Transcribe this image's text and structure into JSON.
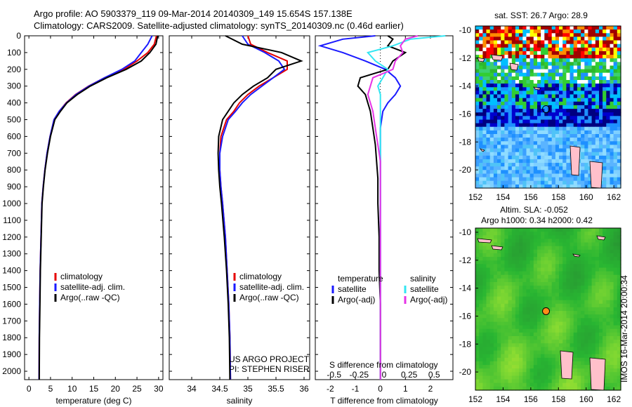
{
  "header": {
    "line1": "Argo profile: AO 5903379_119 09-Mar-2014 20140309_149 15.654S 157.138E",
    "line2": "Climatology: CARS2009. Satellite-adjusted climatology: synTS_20140309.nc (0.46d earlier)"
  },
  "colors": {
    "climatology": "#e60000",
    "satellite": "#1a1aff",
    "argo": "#000000",
    "cyan": "#33e6f2",
    "magenta": "#e633e6"
  },
  "depth_axis": {
    "ticks": [
      0,
      100,
      200,
      300,
      400,
      500,
      600,
      700,
      800,
      900,
      1000,
      1100,
      1200,
      1300,
      1400,
      1500,
      1600,
      1700,
      1800,
      1900,
      2000
    ],
    "range": [
      0,
      2050
    ]
  },
  "chart_data": [
    {
      "type": "line",
      "xlabel": "temperature (deg C)",
      "xlim": [
        -1,
        31
      ],
      "xticks": [
        0,
        5,
        10,
        15,
        20,
        25,
        30
      ],
      "ylim": [
        0,
        2050
      ],
      "legend": [
        "climatology",
        "satellite-adj. clim.",
        "Argo(..raw -QC)"
      ],
      "series": [
        {
          "name": "climatology",
          "color": "climatology",
          "x": [
            29.5,
            29.0,
            27.5,
            25.0,
            22.0,
            17.5,
            13.8,
            10.8,
            8.6,
            7.0,
            5.8,
            4.9,
            4.2,
            3.7,
            3.3,
            3.0,
            2.8,
            2.6,
            2.5,
            2.4,
            2.35
          ],
          "y": [
            0,
            50,
            100,
            150,
            200,
            250,
            300,
            350,
            400,
            450,
            500,
            600,
            700,
            800,
            900,
            1000,
            1200,
            1400,
            1600,
            1800,
            2050
          ]
        },
        {
          "name": "satellite-adj. clim.",
          "color": "satellite",
          "x": [
            28.5,
            27.5,
            26.0,
            24.5,
            21.5,
            17.5,
            13.9,
            10.9,
            8.7,
            7.0,
            5.8,
            4.9,
            4.2,
            3.7,
            3.3,
            3.0,
            2.8,
            2.6,
            2.5,
            2.4,
            2.35
          ],
          "y": [
            0,
            50,
            100,
            150,
            200,
            250,
            300,
            350,
            400,
            450,
            500,
            600,
            700,
            800,
            900,
            1000,
            1200,
            1400,
            1600,
            1800,
            2050
          ]
        },
        {
          "name": "Argo(..raw -QC)",
          "color": "argo",
          "x": [
            29.8,
            29.4,
            28.0,
            26.0,
            22.5,
            18.0,
            14.2,
            11.2,
            8.8,
            7.3,
            6.0,
            5.0,
            4.3,
            3.75,
            3.35,
            3.05,
            2.85,
            2.65,
            2.55,
            2.45,
            2.4
          ],
          "y": [
            0,
            50,
            100,
            150,
            200,
            250,
            300,
            350,
            400,
            450,
            500,
            600,
            700,
            800,
            900,
            1000,
            1200,
            1400,
            1600,
            1800,
            2050
          ]
        }
      ]
    },
    {
      "type": "line",
      "xlabel": "salinity",
      "xlim": [
        33.6,
        36.1
      ],
      "xticks": [
        34,
        34.5,
        35,
        35.5,
        36
      ],
      "xticklabels": [
        "34",
        "34.5",
        "35",
        "35.5",
        "36"
      ],
      "ylim": [
        0,
        2050
      ],
      "legend": [
        "climatology",
        "satellite-adj. clim.",
        "Argo(..raw -QC)"
      ],
      "annotation": [
        "US ARGO PROJECT",
        "PI: STEPHEN RISER"
      ],
      "series": [
        {
          "name": "climatology",
          "color": "climatology",
          "x": [
            35.0,
            35.05,
            35.35,
            35.7,
            35.7,
            35.45,
            35.2,
            35.0,
            34.85,
            34.75,
            34.62,
            34.52,
            34.5,
            34.5,
            34.52,
            34.55,
            34.6,
            34.63,
            34.66,
            34.68,
            34.69
          ],
          "y": [
            0,
            50,
            100,
            150,
            200,
            250,
            300,
            350,
            400,
            450,
            500,
            600,
            700,
            800,
            900,
            1000,
            1200,
            1400,
            1600,
            1800,
            2050
          ]
        },
        {
          "name": "satellite-adj. clim.",
          "color": "satellite",
          "x": [
            34.9,
            35.0,
            35.3,
            35.55,
            35.65,
            35.45,
            35.25,
            35.05,
            34.9,
            34.78,
            34.65,
            34.55,
            34.5,
            34.5,
            34.52,
            34.55,
            34.6,
            34.63,
            34.66,
            34.68,
            34.69
          ],
          "y": [
            0,
            50,
            100,
            150,
            200,
            250,
            300,
            350,
            400,
            450,
            500,
            600,
            700,
            800,
            900,
            1000,
            1200,
            1400,
            1600,
            1800,
            2050
          ]
        },
        {
          "name": "Argo(..raw -QC)",
          "color": "argo",
          "x": [
            34.6,
            34.9,
            35.6,
            35.95,
            35.5,
            35.35,
            35.1,
            34.9,
            34.75,
            34.65,
            34.55,
            34.48,
            34.47,
            34.48,
            34.5,
            34.53,
            34.58,
            34.62,
            34.65,
            34.67,
            34.68
          ],
          "y": [
            0,
            50,
            100,
            150,
            200,
            250,
            300,
            350,
            400,
            450,
            500,
            600,
            700,
            800,
            900,
            1000,
            1200,
            1400,
            1600,
            1800,
            2050
          ]
        }
      ]
    },
    {
      "type": "line",
      "xlabel": "T difference from climatology",
      "xlabel_top": "S difference from climatology",
      "xlim": [
        -2.6,
        2.9
      ],
      "xticks": [
        -2,
        -1,
        0,
        1,
        2
      ],
      "top_ticks": [
        -0.5,
        -0.25,
        0,
        0.25,
        0.5
      ],
      "top_ticklabels": [
        "-0.5",
        "-0.25",
        "0",
        "0.25",
        "0.5"
      ],
      "ylim": [
        0,
        2050
      ],
      "legend": {
        "temperature": [
          "satellite",
          "Argo(-adj)"
        ],
        "salinity": [
          "satellite",
          "Argo(-adj)"
        ]
      },
      "legend_headers": [
        "temperature",
        "salinity"
      ],
      "series": [
        {
          "name": "satellite",
          "group": "temperature",
          "color": "satellite",
          "x": [
            -0.2,
            -1.5,
            -2.4,
            -1.5,
            -0.6,
            0.2,
            0.6,
            0.8,
            0.6,
            0.3,
            0.1,
            0,
            0,
            0,
            0,
            0,
            0,
            0,
            0,
            0,
            0
          ],
          "y": [
            0,
            20,
            60,
            100,
            150,
            200,
            250,
            300,
            350,
            400,
            450,
            550,
            650,
            750,
            850,
            1000,
            1200,
            1400,
            1600,
            1800,
            2050
          ]
        },
        {
          "name": "Argo(-adj)",
          "group": "temperature",
          "color": "argo",
          "x": [
            0.3,
            0.5,
            0.3,
            1.0,
            0.5,
            0.3,
            -0.8,
            -0.9,
            -0.6,
            -0.5,
            -0.4,
            -0.3,
            -0.2,
            -0.15,
            -0.1,
            -0.1,
            -0.05,
            -0.05,
            0,
            0,
            0
          ],
          "y": [
            0,
            20,
            60,
            100,
            150,
            200,
            250,
            300,
            350,
            400,
            450,
            550,
            650,
            750,
            850,
            1000,
            1200,
            1400,
            1600,
            1800,
            2050
          ]
        },
        {
          "name": "satellite",
          "group": "salinity",
          "color": "cyan",
          "x": [
            2.6,
            1.2,
            0.5,
            -0.5,
            -0.2,
            0.3,
            0.1,
            -0.1,
            0,
            0,
            0,
            0,
            0,
            0,
            0,
            0,
            0,
            0,
            0,
            0,
            0
          ],
          "y": [
            0,
            20,
            60,
            100,
            150,
            200,
            250,
            300,
            350,
            400,
            450,
            550,
            650,
            750,
            850,
            1000,
            1200,
            1400,
            1600,
            1800,
            2050
          ]
        },
        {
          "name": "Argo(-adj)",
          "group": "salinity",
          "color": "magenta",
          "x": [
            1.5,
            1.0,
            0.8,
            0.9,
            0.6,
            0.5,
            -0.3,
            -0.4,
            -0.5,
            -0.4,
            -0.3,
            -0.2,
            -0.1,
            0,
            0,
            0,
            0,
            0,
            0,
            0,
            0
          ],
          "y": [
            0,
            20,
            60,
            100,
            150,
            200,
            250,
            300,
            350,
            400,
            450,
            550,
            650,
            750,
            850,
            1000,
            1200,
            1400,
            1600,
            1800,
            2050
          ]
        }
      ]
    },
    {
      "type": "heatmap",
      "title": "sat. SST: 26.7  Argo: 28.9",
      "xlim": [
        152,
        162.5
      ],
      "ylim": [
        -21.3,
        -9.7
      ],
      "xticks": [
        152,
        154,
        156,
        158,
        160,
        162
      ],
      "yticks": [
        -10,
        -12,
        -14,
        -16,
        -18,
        -20
      ],
      "marker": {
        "lon": 157.1,
        "lat": -15.65
      }
    },
    {
      "type": "heatmap",
      "title": "Altim. SLA: -0.052",
      "subtitle": "Argo h1000: 0.34 h2000: 0.42",
      "xlim": [
        152,
        162.5
      ],
      "ylim": [
        -21.3,
        -9.7
      ],
      "xticks": [
        152,
        154,
        156,
        158,
        160,
        162
      ],
      "yticks": [
        -10,
        -12,
        -14,
        -16,
        -18,
        -20
      ],
      "marker": {
        "lon": 157.1,
        "lat": -15.65
      }
    }
  ],
  "side_label": "IMOS 16-Mar-2014 20:00:34"
}
